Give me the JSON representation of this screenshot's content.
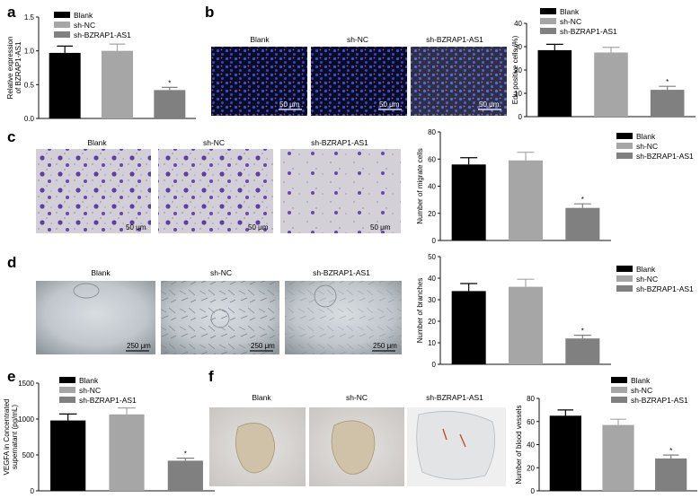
{
  "conditions": [
    "Blank",
    "sh-NC",
    "sh-BZRAP1-AS1"
  ],
  "bar_colors": [
    "#000000",
    "#a6a6a6",
    "#808080"
  ],
  "panels": [
    {
      "letter": "a"
    },
    {
      "letter": "b",
      "scale_bar": "50 μm"
    },
    {
      "letter": "c",
      "scale_bar": "50 μm"
    },
    {
      "letter": "d",
      "scale_bar": "250 μm"
    },
    {
      "letter": "e"
    },
    {
      "letter": "f"
    }
  ],
  "significance_marker": "*",
  "chart_data": [
    {
      "panel": "a",
      "type": "bar",
      "categories": [
        "Blank",
        "sh-NC",
        "sh-BZRAP1-AS1"
      ],
      "values": [
        0.97,
        1.0,
        0.42
      ],
      "errors": [
        0.1,
        0.1,
        0.04
      ],
      "ylabel": "Relative expression of BZRAP1-AS1",
      "ylim": [
        0,
        1.5
      ],
      "yticks": [
        "0.0",
        "0.5",
        "1.0",
        "1.5"
      ],
      "significant": [
        false,
        false,
        true
      ],
      "legend": "top"
    },
    {
      "panel": "b",
      "type": "bar",
      "categories": [
        "Blank",
        "sh-NC",
        "sh-BZRAP1-AS1"
      ],
      "values": [
        28.5,
        27.5,
        11.5
      ],
      "errors": [
        2.5,
        2.2,
        1.5
      ],
      "ylabel": "Edu positive cells (%)",
      "ylim": [
        0,
        40
      ],
      "yticks": [
        "0",
        "10",
        "20",
        "30",
        "40"
      ],
      "significant": [
        false,
        false,
        true
      ],
      "legend": "top"
    },
    {
      "panel": "c",
      "type": "bar",
      "categories": [
        "Blank",
        "sh-NC",
        "sh-BZRAP1-AS1"
      ],
      "values": [
        56,
        59,
        24
      ],
      "errors": [
        5,
        6,
        3
      ],
      "ylabel": "Number of migrate cells",
      "ylim": [
        0,
        80
      ],
      "yticks": [
        "0",
        "20",
        "40",
        "60",
        "80"
      ],
      "significant": [
        false,
        false,
        true
      ],
      "legend": "right"
    },
    {
      "panel": "d",
      "type": "bar",
      "categories": [
        "Blank",
        "sh-NC",
        "sh-BZRAP1-AS1"
      ],
      "values": [
        34,
        36,
        12
      ],
      "errors": [
        3.5,
        3.5,
        1.5
      ],
      "ylabel": "Number of branches",
      "ylim": [
        0,
        50
      ],
      "yticks": [
        "0",
        "10",
        "20",
        "30",
        "40",
        "50"
      ],
      "significant": [
        false,
        false,
        true
      ],
      "legend": "right"
    },
    {
      "panel": "e",
      "type": "bar",
      "categories": [
        "Blank",
        "sh-NC",
        "sh-BZRAP1-AS1"
      ],
      "values": [
        980,
        1065,
        420
      ],
      "errors": [
        90,
        90,
        35
      ],
      "ylabel": "VEGFA in Concentrated supernatant (pg/mL)",
      "ylim": [
        0,
        1500
      ],
      "yticks": [
        "0",
        "500",
        "1000",
        "1500"
      ],
      "significant": [
        false,
        false,
        true
      ],
      "legend": "top"
    },
    {
      "panel": "f",
      "type": "bar",
      "categories": [
        "Blank",
        "sh-NC",
        "sh-BZRAP1-AS1"
      ],
      "values": [
        65,
        57,
        28
      ],
      "errors": [
        5,
        5,
        3
      ],
      "ylabel": "Number of blood vessels",
      "ylim": [
        0,
        80
      ],
      "yticks": [
        "0",
        "20",
        "40",
        "60",
        "80"
      ],
      "significant": [
        false,
        false,
        true
      ],
      "legend": "top"
    }
  ]
}
